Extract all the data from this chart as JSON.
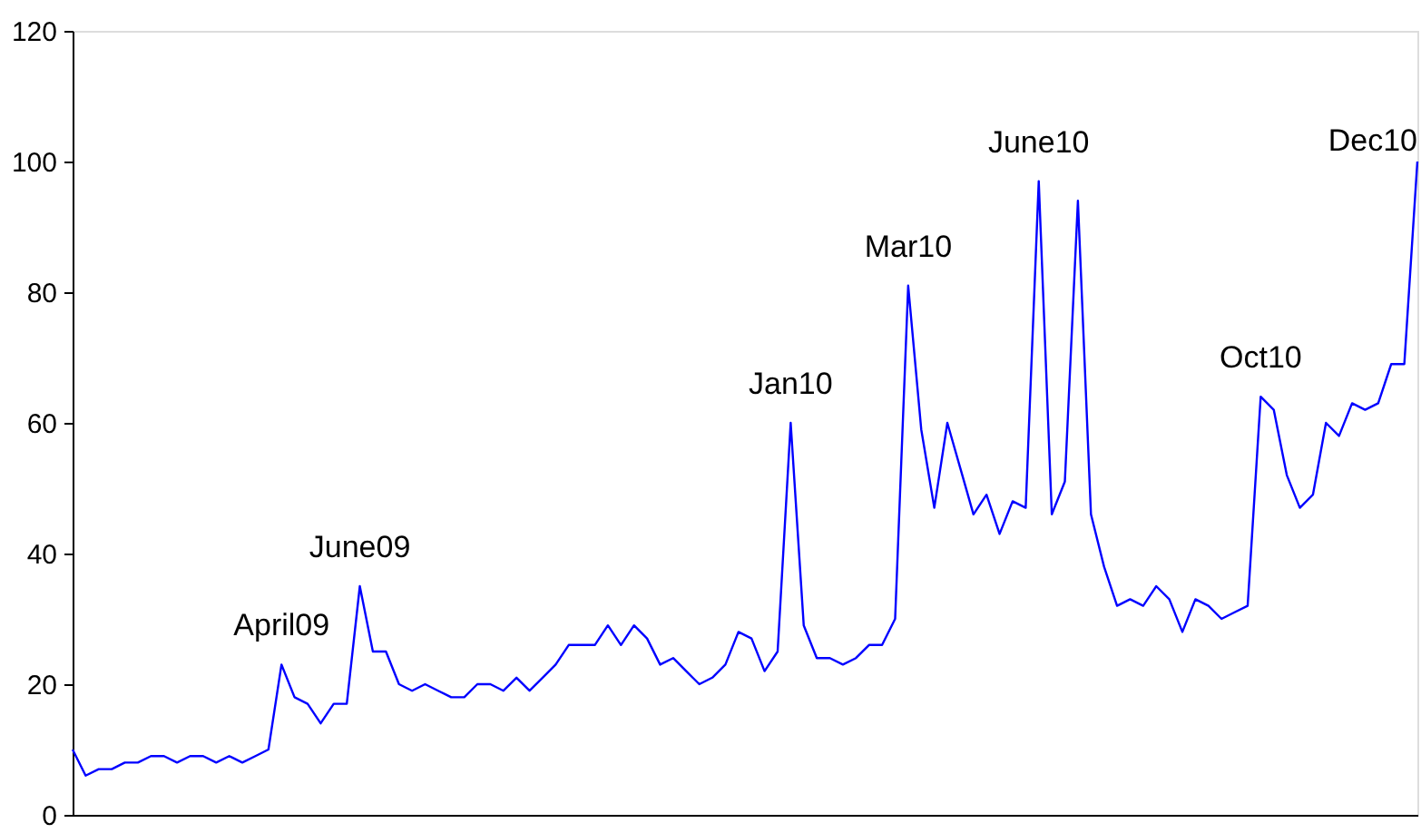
{
  "chart_data": {
    "type": "line",
    "categories": [
      null,
      null,
      null,
      null,
      null,
      null,
      null,
      null,
      null,
      null,
      null,
      null,
      null,
      null,
      null,
      null,
      null,
      null,
      null,
      null,
      null,
      null,
      null,
      null,
      null,
      null,
      null,
      null,
      null,
      null,
      null,
      null,
      null,
      null,
      null,
      null,
      null,
      null,
      null,
      null,
      null,
      null,
      null,
      null,
      null,
      null,
      null,
      null,
      null,
      null,
      null,
      null,
      null,
      null,
      null,
      null,
      null,
      null,
      null,
      null,
      null,
      null,
      null,
      null,
      null,
      null,
      null,
      null,
      null,
      null,
      null,
      null,
      null,
      null,
      null,
      null,
      null,
      null,
      null,
      null,
      null,
      null,
      null,
      null,
      null,
      null,
      null,
      null,
      null,
      null,
      null,
      null,
      null,
      null,
      null,
      null,
      null,
      null,
      null,
      null,
      null,
      null,
      null,
      null
    ],
    "series": [
      {
        "color": "#0000ff",
        "values": [
          10,
          6,
          7,
          7,
          8,
          8,
          9,
          9,
          8,
          9,
          9,
          8,
          9,
          8,
          9,
          10,
          23,
          18,
          17,
          14,
          17,
          17,
          35,
          25,
          25,
          20,
          19,
          20,
          19,
          18,
          18,
          20,
          20,
          19,
          21,
          19,
          21,
          23,
          26,
          26,
          26,
          29,
          26,
          29,
          27,
          23,
          24,
          22,
          20,
          21,
          23,
          28,
          27,
          22,
          25,
          60,
          29,
          24,
          24,
          23,
          24,
          26,
          26,
          30,
          81,
          59,
          47,
          60,
          53,
          46,
          49,
          43,
          48,
          47,
          97,
          46,
          51,
          94,
          46,
          38,
          32,
          33,
          32,
          35,
          33,
          28,
          33,
          32,
          30,
          31,
          32,
          64,
          62,
          52,
          47,
          49,
          60,
          58,
          63,
          62,
          63,
          69,
          69,
          100
        ]
      }
    ],
    "ylim": [
      0,
      120
    ],
    "yticks": [
      0,
      20,
      40,
      60,
      80,
      100,
      120
    ],
    "tick_labels": "y",
    "grid": false,
    "marker": "none",
    "line_style": "solid",
    "annotations": [
      {
        "text": "April09",
        "y": 23
      },
      {
        "text": "June09",
        "y": 35
      },
      {
        "text": "Jan10",
        "y": 60
      },
      {
        "text": "Mar10",
        "y": 81
      },
      {
        "text": "June10",
        "y": 97
      },
      {
        "text": "Oct10",
        "y": 64
      },
      "Dec10"
    ]
  }
}
